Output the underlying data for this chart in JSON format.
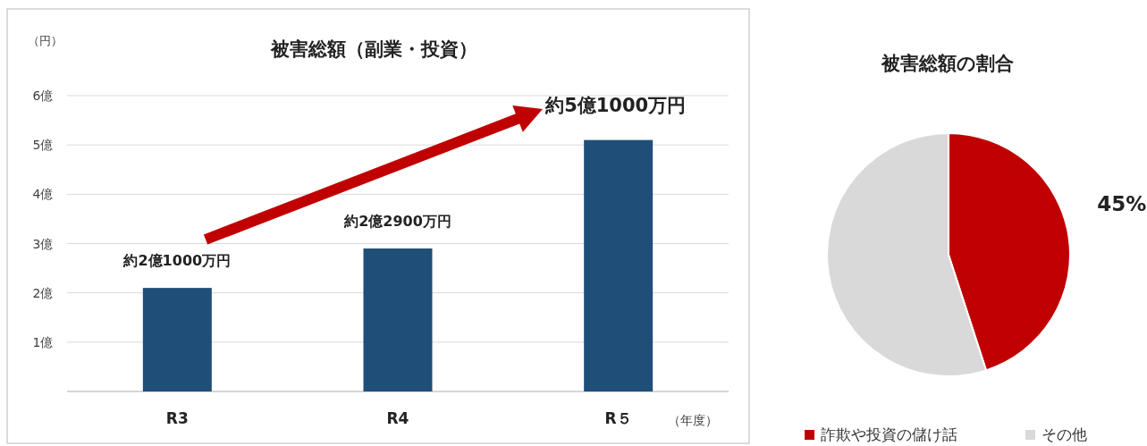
{
  "chart_data": [
    {
      "type": "bar",
      "title": "被害総額（副業・投資）",
      "ylabel": "（円）",
      "xlabel": "（年度）",
      "categories": [
        "R3",
        "R4",
        "R５"
      ],
      "series": [
        {
          "color": "#1f4e79",
          "values": [
            2.1,
            2.9,
            5.1
          ],
          "value_labels": [
            "約2億1000万円",
            "約2億2900万円",
            "約5億1000万円"
          ]
        }
      ],
      "ylim": [
        0,
        6
      ],
      "yticks": [
        {
          "value": 0,
          "label": null
        },
        {
          "value": 1,
          "label": "1億"
        },
        {
          "value": 2,
          "label": "2億"
        },
        {
          "value": 3,
          "label": "3億"
        },
        {
          "value": 4,
          "label": "4億"
        },
        {
          "value": 5,
          "label": "5億"
        },
        {
          "value": 6,
          "label": "6億"
        }
      ],
      "grid": "y"
    },
    {
      "type": "pie",
      "title": "被害総額の割合",
      "categories": [
        "詐欺や投資の儲け話",
        "その他"
      ],
      "values": [
        45,
        55
      ],
      "colors": [
        "#c00000",
        "#d9d9d9"
      ],
      "value_labels": [
        "45%",
        null
      ],
      "legend": "bottom"
    }
  ]
}
